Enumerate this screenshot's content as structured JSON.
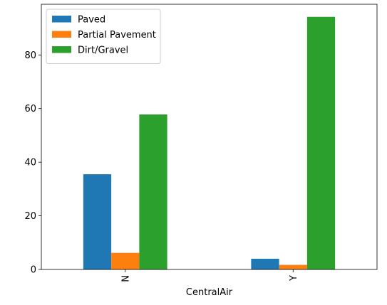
{
  "chart_data": {
    "type": "bar",
    "xlabel": "CentralAir",
    "ylabel": "",
    "categories": [
      "N",
      "Y"
    ],
    "series": [
      {
        "name": "Paved",
        "color": "#1f77b4",
        "values": [
          35.5,
          4.0
        ]
      },
      {
        "name": "Partial Pavement",
        "color": "#ff7f0e",
        "values": [
          6.2,
          1.7
        ]
      },
      {
        "name": "Dirt/Gravel",
        "color": "#2ca02c",
        "values": [
          57.8,
          94.2
        ]
      }
    ],
    "ylim": [
      0,
      98.9
    ],
    "yticks": [
      0,
      20,
      40,
      60,
      80
    ],
    "x_tick_rotation": "vertical",
    "legend_position": "top-left",
    "grid": false
  }
}
